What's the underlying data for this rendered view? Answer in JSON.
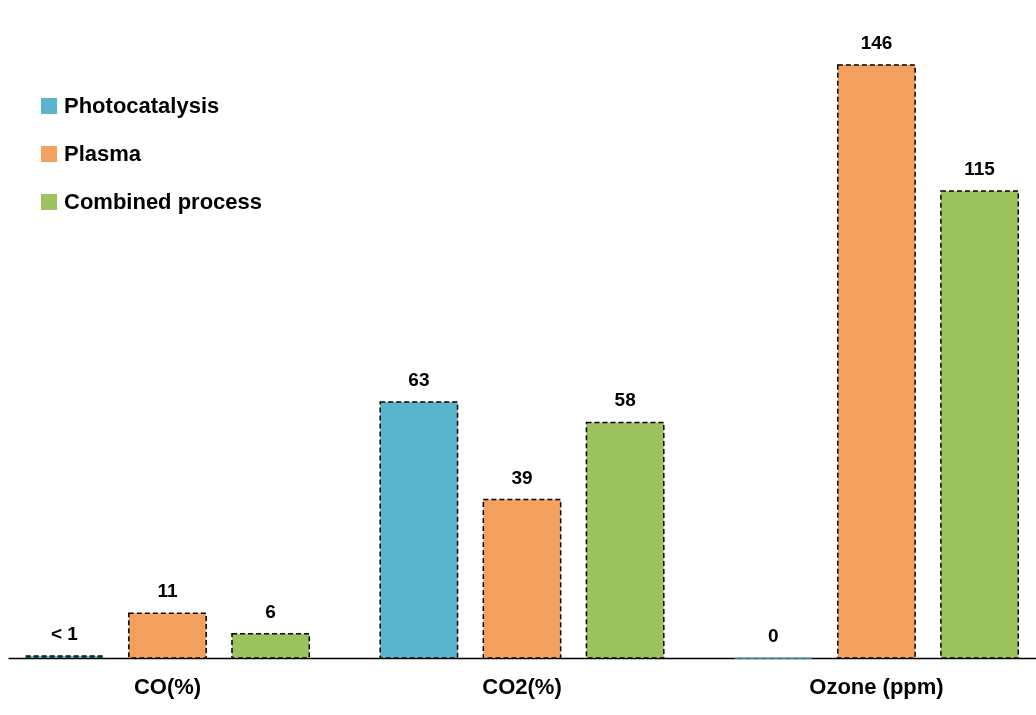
{
  "chart_data": {
    "type": "bar",
    "categories": [
      "CO(%)",
      "CO2(%)",
      "Ozone (ppm)"
    ],
    "legend": "top left",
    "tick_labels": "x",
    "series": [
      {
        "name": "Photocatalysis",
        "color": "#5ab4cc",
        "values": [
          0.5,
          63,
          0
        ],
        "value_labels": [
          "< 1",
          "63",
          "0"
        ]
      },
      {
        "name": "Plasma",
        "color": "#f4a160",
        "values": [
          11,
          39,
          146
        ],
        "value_labels": [
          "11",
          "39",
          "146"
        ]
      },
      {
        "name": "Combined process",
        "color": "#9dc35e",
        "values": [
          6,
          58,
          115
        ],
        "value_labels": [
          "6",
          "58",
          "115"
        ]
      }
    ]
  }
}
